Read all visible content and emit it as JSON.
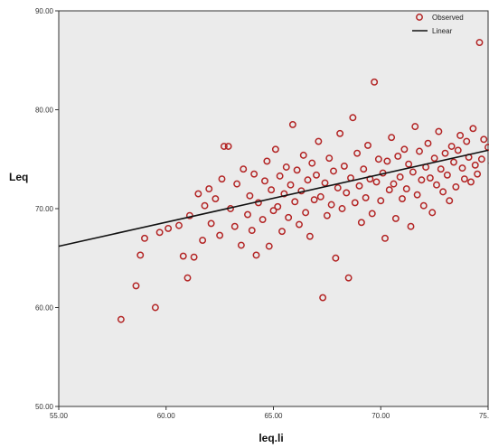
{
  "chart_data": {
    "type": "scatter",
    "title": "",
    "xlabel": "leq.li",
    "ylabel": "Leq",
    "xlim": [
      55.0,
      75.0
    ],
    "ylim": [
      50.0,
      90.0
    ],
    "x_ticks": [
      "55.00",
      "60.00",
      "65.00",
      "70.00",
      "75.00"
    ],
    "y_ticks": [
      "50.00",
      "60.00",
      "70.00",
      "80.00",
      "90.00"
    ],
    "x_tick_values": [
      55,
      60,
      65,
      70,
      75
    ],
    "y_tick_values": [
      50,
      60,
      70,
      80,
      90
    ],
    "grid": false,
    "legend_position": "top-right",
    "colors": {
      "plot_background": "#ebebeb",
      "marker_stroke": "#b32424",
      "fit_line": "#111111"
    },
    "series": [
      {
        "name": "Observed",
        "kind": "scatter",
        "marker": "open-circle",
        "points": [
          [
            57.9,
            58.8
          ],
          [
            58.6,
            62.2
          ],
          [
            58.8,
            65.3
          ],
          [
            59.0,
            67.0
          ],
          [
            59.5,
            60.0
          ],
          [
            59.7,
            67.6
          ],
          [
            60.1,
            68.0
          ],
          [
            60.6,
            68.3
          ],
          [
            60.8,
            65.2
          ],
          [
            61.0,
            63.0
          ],
          [
            61.1,
            69.3
          ],
          [
            61.3,
            65.1
          ],
          [
            61.5,
            71.5
          ],
          [
            61.7,
            66.8
          ],
          [
            61.8,
            70.3
          ],
          [
            62.0,
            72.0
          ],
          [
            62.1,
            68.5
          ],
          [
            62.3,
            71.0
          ],
          [
            62.5,
            67.3
          ],
          [
            62.6,
            73.0
          ],
          [
            62.7,
            76.3
          ],
          [
            62.9,
            76.3
          ],
          [
            63.0,
            70.0
          ],
          [
            63.2,
            68.2
          ],
          [
            63.3,
            72.5
          ],
          [
            63.5,
            66.3
          ],
          [
            63.6,
            74.0
          ],
          [
            63.8,
            69.4
          ],
          [
            63.9,
            71.3
          ],
          [
            64.0,
            67.8
          ],
          [
            64.1,
            73.5
          ],
          [
            64.2,
            65.3
          ],
          [
            64.3,
            70.6
          ],
          [
            64.5,
            68.9
          ],
          [
            64.6,
            72.8
          ],
          [
            64.7,
            74.8
          ],
          [
            64.8,
            66.2
          ],
          [
            64.9,
            71.9
          ],
          [
            65.0,
            69.8
          ],
          [
            65.1,
            76.0
          ],
          [
            65.2,
            70.2
          ],
          [
            65.3,
            73.3
          ],
          [
            65.4,
            67.7
          ],
          [
            65.5,
            71.5
          ],
          [
            65.6,
            74.2
          ],
          [
            65.7,
            69.1
          ],
          [
            65.8,
            72.4
          ],
          [
            65.9,
            78.5
          ],
          [
            66.0,
            70.7
          ],
          [
            66.1,
            73.9
          ],
          [
            66.2,
            68.4
          ],
          [
            66.3,
            71.8
          ],
          [
            66.4,
            75.4
          ],
          [
            66.5,
            69.6
          ],
          [
            66.6,
            72.9
          ],
          [
            66.7,
            67.2
          ],
          [
            66.8,
            74.6
          ],
          [
            66.9,
            70.9
          ],
          [
            67.0,
            73.4
          ],
          [
            67.1,
            76.8
          ],
          [
            67.2,
            71.2
          ],
          [
            67.3,
            61.0
          ],
          [
            67.4,
            72.6
          ],
          [
            67.5,
            69.3
          ],
          [
            67.6,
            75.1
          ],
          [
            67.7,
            70.4
          ],
          [
            67.8,
            73.8
          ],
          [
            67.9,
            65.0
          ],
          [
            68.0,
            72.1
          ],
          [
            68.1,
            77.6
          ],
          [
            68.2,
            70.0
          ],
          [
            68.3,
            74.3
          ],
          [
            68.4,
            71.6
          ],
          [
            68.5,
            63.0
          ],
          [
            68.6,
            73.1
          ],
          [
            68.7,
            79.2
          ],
          [
            68.8,
            70.6
          ],
          [
            68.9,
            75.6
          ],
          [
            69.0,
            72.3
          ],
          [
            69.1,
            68.6
          ],
          [
            69.2,
            74.0
          ],
          [
            69.3,
            71.1
          ],
          [
            69.4,
            76.4
          ],
          [
            69.5,
            73.0
          ],
          [
            69.6,
            69.5
          ],
          [
            69.7,
            82.8
          ],
          [
            69.8,
            72.7
          ],
          [
            69.9,
            75.0
          ],
          [
            70.0,
            70.8
          ],
          [
            70.1,
            73.6
          ],
          [
            70.2,
            67.0
          ],
          [
            70.3,
            74.8
          ],
          [
            70.4,
            71.9
          ],
          [
            70.5,
            77.2
          ],
          [
            70.6,
            72.5
          ],
          [
            70.7,
            69.0
          ],
          [
            70.8,
            75.3
          ],
          [
            70.9,
            73.2
          ],
          [
            71.0,
            71.0
          ],
          [
            71.1,
            76.0
          ],
          [
            71.2,
            72.0
          ],
          [
            71.3,
            74.5
          ],
          [
            71.4,
            68.2
          ],
          [
            71.5,
            73.7
          ],
          [
            71.6,
            78.3
          ],
          [
            71.7,
            71.4
          ],
          [
            71.8,
            75.8
          ],
          [
            71.9,
            72.9
          ],
          [
            72.0,
            70.3
          ],
          [
            72.1,
            74.2
          ],
          [
            72.2,
            76.6
          ],
          [
            72.3,
            73.1
          ],
          [
            72.4,
            69.6
          ],
          [
            72.5,
            75.1
          ],
          [
            72.6,
            72.4
          ],
          [
            72.7,
            77.8
          ],
          [
            72.8,
            74.0
          ],
          [
            72.9,
            71.7
          ],
          [
            73.0,
            75.6
          ],
          [
            73.1,
            73.4
          ],
          [
            73.2,
            70.8
          ],
          [
            73.3,
            76.3
          ],
          [
            73.4,
            74.7
          ],
          [
            73.5,
            72.2
          ],
          [
            73.6,
            75.9
          ],
          [
            73.7,
            77.4
          ],
          [
            73.8,
            74.1
          ],
          [
            73.9,
            73.0
          ],
          [
            74.0,
            76.8
          ],
          [
            74.1,
            75.2
          ],
          [
            74.2,
            72.7
          ],
          [
            74.3,
            78.1
          ],
          [
            74.4,
            74.4
          ],
          [
            74.5,
            73.5
          ],
          [
            74.6,
            86.8
          ],
          [
            74.7,
            75.0
          ],
          [
            74.8,
            77.0
          ],
          [
            75.0,
            76.2
          ],
          [
            75.2,
            74.6
          ],
          [
            75.4,
            75.7
          ]
        ]
      },
      {
        "name": "Linear",
        "kind": "line",
        "points": [
          [
            55.0,
            66.2
          ],
          [
            75.4,
            75.9
          ]
        ]
      }
    ]
  }
}
